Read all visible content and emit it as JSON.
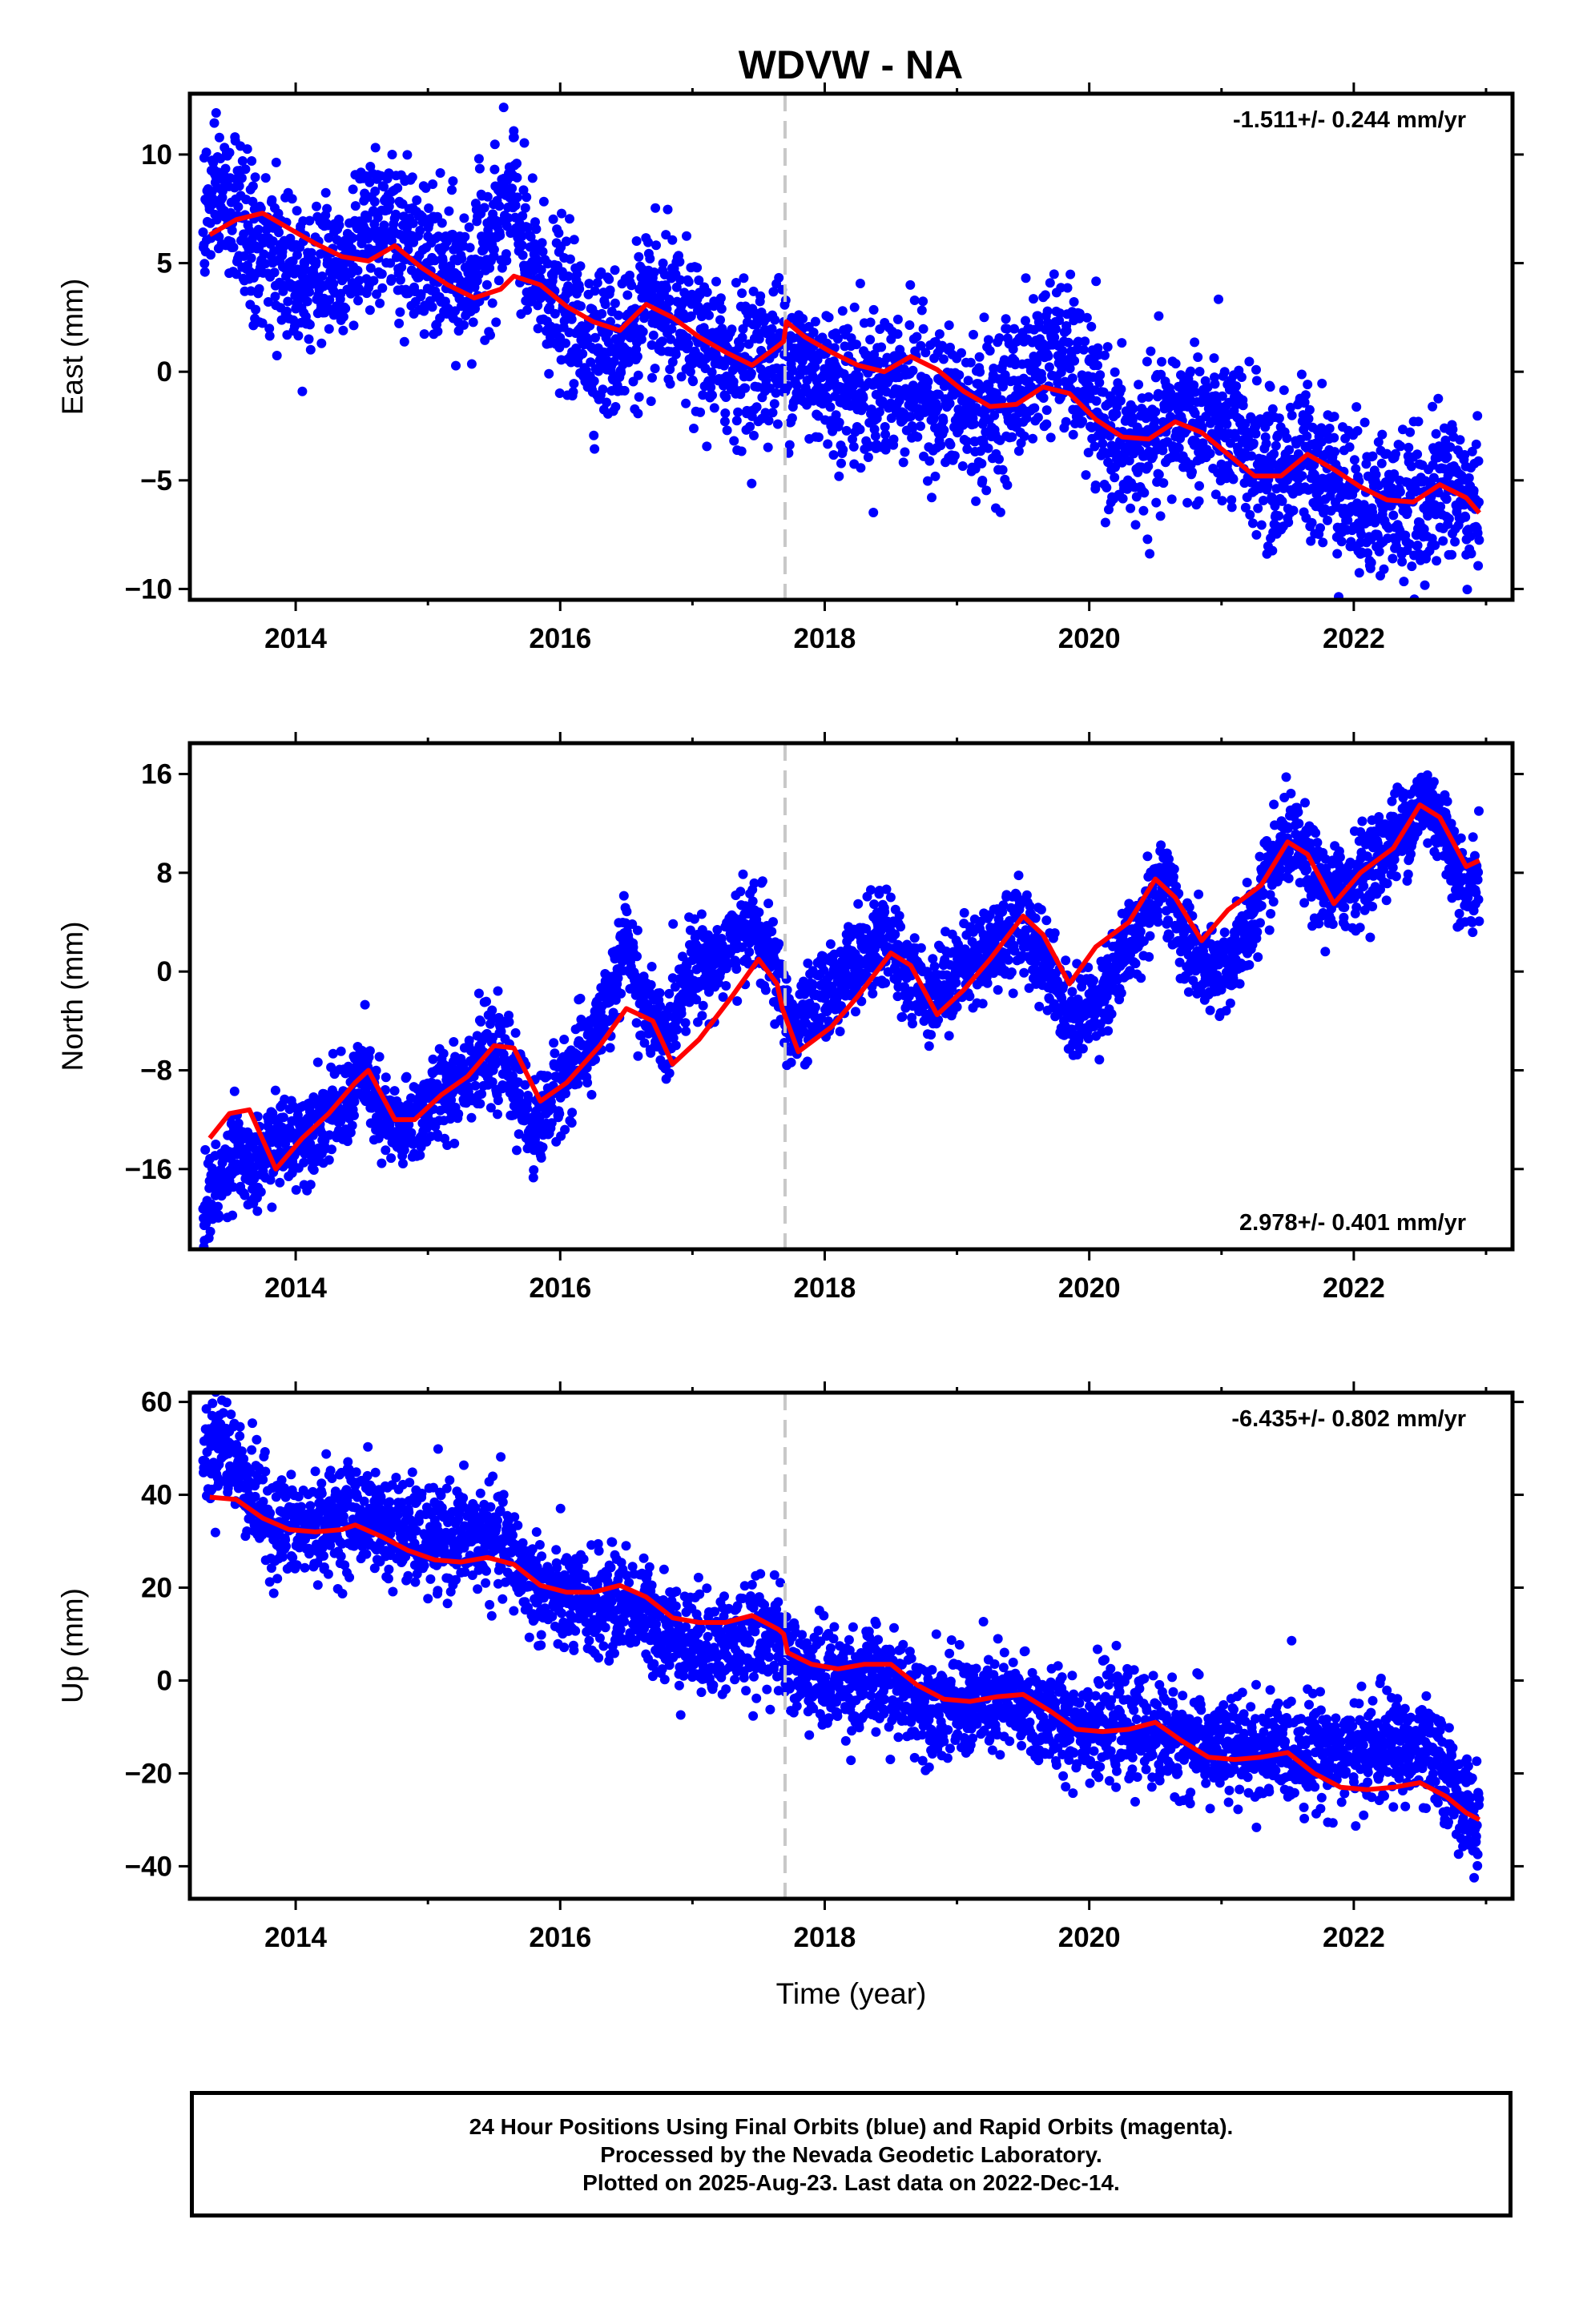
{
  "title": "WDVW - NA",
  "footer": {
    "line1": "24 Hour Positions Using Final Orbits (blue) and Rapid Orbits (magenta).",
    "line2": "Processed by the Nevada Geodetic Laboratory.",
    "line3": "Plotted on 2025-Aug-23. Last data on 2022-Dec-14."
  },
  "colors": {
    "final_orbits": "#0000ff",
    "model_fit": "#ff0000",
    "event_line": "#c8c8c8",
    "frame": "#000000"
  },
  "chart_data": [
    {
      "type": "scatter",
      "component": "east",
      "ylabel": "East (mm)",
      "xlabel": "",
      "xlim": [
        2013.2,
        2023.2
      ],
      "ylim": [
        -10.5,
        12.8
      ],
      "xticks": [
        2014,
        2016,
        2018,
        2020,
        2022
      ],
      "xtick_labels": [
        "2014",
        "2016",
        "2018",
        "2020",
        "2022"
      ],
      "yticks": [
        10,
        5,
        0,
        -5,
        -10
      ],
      "ytick_labels": [
        "10",
        "5",
        "0",
        "−5",
        "−10"
      ],
      "rate_label": "-1.511+/- 0.244 mm/yr",
      "rate_label_position": "top-right",
      "event_line_x": 2017.7,
      "fit_x": [
        2013.35,
        2013.55,
        2013.75,
        2013.95,
        2014.15,
        2014.35,
        2014.55,
        2014.75,
        2014.95,
        2015.15,
        2015.35,
        2015.55,
        2015.65,
        2015.85,
        2016.05,
        2016.25,
        2016.45,
        2016.65,
        2016.85,
        2017.05,
        2017.25,
        2017.45,
        2017.65,
        2017.69,
        2017.71,
        2017.85,
        2018.05,
        2018.25,
        2018.45,
        2018.65,
        2018.85,
        2019.05,
        2019.25,
        2019.45,
        2019.65,
        2019.85,
        2020.05,
        2020.25,
        2020.45,
        2020.65,
        2020.85,
        2021.05,
        2021.25,
        2021.45,
        2021.65,
        2021.85,
        2022.05,
        2022.25,
        2022.45,
        2022.65,
        2022.85,
        2022.95
      ],
      "fit_y": [
        6.3,
        7.0,
        7.3,
        6.6,
        5.9,
        5.3,
        5.1,
        5.8,
        4.8,
        4.0,
        3.4,
        3.8,
        4.4,
        4.0,
        3.0,
        2.3,
        1.9,
        3.1,
        2.5,
        1.6,
        0.9,
        0.3,
        1.2,
        1.4,
        2.3,
        1.6,
        0.9,
        0.3,
        0.0,
        0.7,
        0.1,
        -0.9,
        -1.6,
        -1.5,
        -0.7,
        -1.0,
        -2.2,
        -3.0,
        -3.1,
        -2.3,
        -2.8,
        -3.8,
        -4.8,
        -4.8,
        -3.8,
        -4.5,
        -5.3,
        -5.9,
        -6.0,
        -5.2,
        -5.8,
        -6.5
      ],
      "data_trend": [
        [
          2013.3,
          7.0
        ],
        [
          2013.4,
          8.2
        ],
        [
          2013.55,
          7.3
        ],
        [
          2013.7,
          5.5
        ],
        [
          2013.9,
          5.0
        ],
        [
          2014.1,
          4.5
        ],
        [
          2014.3,
          5.0
        ],
        [
          2014.5,
          5.8
        ],
        [
          2014.7,
          6.8
        ],
        [
          2014.9,
          5.5
        ],
        [
          2015.1,
          4.5
        ],
        [
          2015.3,
          4.2
        ],
        [
          2015.5,
          6.5
        ],
        [
          2015.65,
          8.0
        ],
        [
          2015.75,
          4.8
        ],
        [
          2015.95,
          3.5
        ],
        [
          2016.15,
          2.0
        ],
        [
          2016.4,
          1.0
        ],
        [
          2016.6,
          2.5
        ],
        [
          2016.8,
          2.8
        ],
        [
          2017.0,
          1.5
        ],
        [
          2017.2,
          0.5
        ],
        [
          2017.5,
          0.5
        ],
        [
          2017.7,
          0.8
        ],
        [
          2018.0,
          -0.3
        ],
        [
          2018.3,
          -0.8
        ],
        [
          2018.6,
          -0.5
        ],
        [
          2018.9,
          -1.5
        ],
        [
          2019.2,
          -2.0
        ],
        [
          2019.5,
          -0.5
        ],
        [
          2019.7,
          1.2
        ],
        [
          2019.9,
          0.0
        ],
        [
          2020.1,
          -2.5
        ],
        [
          2020.3,
          -3.8
        ],
        [
          2020.5,
          -3.2
        ],
        [
          2020.7,
          -2.0
        ],
        [
          2020.9,
          -2.5
        ],
        [
          2021.2,
          -3.5
        ],
        [
          2021.4,
          -5.0
        ],
        [
          2021.6,
          -3.8
        ],
        [
          2021.8,
          -4.5
        ],
        [
          2022.0,
          -6.0
        ],
        [
          2022.2,
          -6.0
        ],
        [
          2022.5,
          -6.5
        ],
        [
          2022.7,
          -5.0
        ],
        [
          2022.95,
          -6.5
        ]
      ],
      "data_scatter_mm": 1.7
    },
    {
      "type": "scatter",
      "component": "north",
      "ylabel": "North (mm)",
      "xlabel": "",
      "xlim": [
        2013.2,
        2023.2
      ],
      "ylim": [
        -22.5,
        18.5
      ],
      "xticks": [
        2014,
        2016,
        2018,
        2020,
        2022
      ],
      "xtick_labels": [
        "2014",
        "2016",
        "2018",
        "2020",
        "2022"
      ],
      "yticks": [
        16,
        8,
        0,
        -8,
        -16
      ],
      "ytick_labels": [
        "16",
        "8",
        "0",
        "−8",
        "−16"
      ],
      "rate_label": "2.978+/- 0.401 mm/yr",
      "rate_label_position": "bottom-right",
      "event_line_x": 2017.7,
      "fit_x": [
        2013.35,
        2013.5,
        2013.65,
        2013.85,
        2014.05,
        2014.25,
        2014.45,
        2014.55,
        2014.75,
        2014.9,
        2015.1,
        2015.3,
        2015.5,
        2015.65,
        2015.85,
        2016.05,
        2016.3,
        2016.5,
        2016.7,
        2016.85,
        2017.05,
        2017.3,
        2017.5,
        2017.64,
        2017.68,
        2017.8,
        2018.05,
        2018.25,
        2018.5,
        2018.65,
        2018.85,
        2019.05,
        2019.25,
        2019.5,
        2019.65,
        2019.85,
        2020.05,
        2020.3,
        2020.5,
        2020.65,
        2020.85,
        2021.05,
        2021.3,
        2021.5,
        2021.65,
        2021.85,
        2022.05,
        2022.3,
        2022.5,
        2022.65,
        2022.85,
        2022.95
      ],
      "fit_y": [
        -13.5,
        -11.5,
        -11.2,
        -16.0,
        -13.5,
        -11.5,
        -9.0,
        -8.0,
        -12.0,
        -12.0,
        -10.0,
        -8.5,
        -6.0,
        -6.2,
        -10.5,
        -9.0,
        -6.0,
        -3.0,
        -4.0,
        -7.5,
        -5.5,
        -2.0,
        1.0,
        -1.0,
        -3.0,
        -6.5,
        -4.5,
        -2.0,
        1.5,
        0.5,
        -3.5,
        -1.5,
        1.0,
        4.5,
        3.0,
        -1.0,
        2.0,
        4.0,
        7.5,
        6.0,
        2.5,
        5.0,
        7.0,
        10.5,
        9.5,
        5.5,
        8.0,
        10.0,
        13.5,
        12.5,
        8.5,
        9.0
      ],
      "data_trend": [
        [
          2013.3,
          -19.0
        ],
        [
          2013.45,
          -17.0
        ],
        [
          2013.55,
          -13.0
        ],
        [
          2013.65,
          -17.0
        ],
        [
          2013.8,
          -14.0
        ],
        [
          2014.0,
          -13.5
        ],
        [
          2014.2,
          -12.0
        ],
        [
          2014.4,
          -10.5
        ],
        [
          2014.5,
          -8.0
        ],
        [
          2014.65,
          -12.0
        ],
        [
          2014.8,
          -13.0
        ],
        [
          2015.0,
          -11.0
        ],
        [
          2015.2,
          -9.0
        ],
        [
          2015.4,
          -7.0
        ],
        [
          2015.6,
          -7.5
        ],
        [
          2015.8,
          -13.0
        ],
        [
          2016.0,
          -9.0
        ],
        [
          2016.2,
          -6.5
        ],
        [
          2016.4,
          -2.0
        ],
        [
          2016.5,
          3.0
        ],
        [
          2016.6,
          -2.0
        ],
        [
          2016.8,
          -6.0
        ],
        [
          2016.95,
          0.0
        ],
        [
          2017.2,
          1.0
        ],
        [
          2017.45,
          4.0
        ],
        [
          2017.6,
          1.0
        ],
        [
          2017.75,
          -5.0
        ],
        [
          2017.95,
          -2.5
        ],
        [
          2018.2,
          0.5
        ],
        [
          2018.45,
          3.0
        ],
        [
          2018.6,
          0.0
        ],
        [
          2018.8,
          -2.0
        ],
        [
          2019.0,
          0.0
        ],
        [
          2019.3,
          2.5
        ],
        [
          2019.5,
          3.5
        ],
        [
          2019.7,
          0.5
        ],
        [
          2019.85,
          -4.0
        ],
        [
          2020.0,
          -3.0
        ],
        [
          2020.2,
          0.0
        ],
        [
          2020.4,
          4.0
        ],
        [
          2020.55,
          8.0
        ],
        [
          2020.7,
          3.0
        ],
        [
          2020.9,
          -0.5
        ],
        [
          2021.1,
          1.0
        ],
        [
          2021.3,
          6.0
        ],
        [
          2021.5,
          11.0
        ],
        [
          2021.6,
          9.5
        ],
        [
          2021.8,
          6.0
        ],
        [
          2022.0,
          7.5
        ],
        [
          2022.2,
          9.5
        ],
        [
          2022.4,
          12.0
        ],
        [
          2022.55,
          14.0
        ],
        [
          2022.7,
          11.0
        ],
        [
          2022.85,
          6.0
        ],
        [
          2022.95,
          8.0
        ]
      ],
      "data_scatter_mm": 1.8
    },
    {
      "type": "scatter",
      "component": "up",
      "ylabel": "Up (mm)",
      "xlabel": "Time (year)",
      "xlim": [
        2013.2,
        2023.2
      ],
      "ylim": [
        -47.0,
        62.0
      ],
      "xticks": [
        2014,
        2016,
        2018,
        2020,
        2022
      ],
      "xtick_labels": [
        "2014",
        "2016",
        "2018",
        "2020",
        "2022"
      ],
      "yticks": [
        60,
        40,
        20,
        0,
        -20,
        -40
      ],
      "ytick_labels": [
        "60",
        "40",
        "20",
        "0",
        "−20",
        "−40"
      ],
      "rate_label": "-6.435+/- 0.802 mm/yr",
      "rate_label_position": "top-right",
      "event_line_x": 2017.7,
      "fit_x": [
        2013.35,
        2013.55,
        2013.75,
        2013.95,
        2014.15,
        2014.35,
        2014.45,
        2014.65,
        2014.85,
        2015.05,
        2015.25,
        2015.45,
        2015.65,
        2015.85,
        2016.05,
        2016.25,
        2016.45,
        2016.65,
        2016.85,
        2017.05,
        2017.25,
        2017.45,
        2017.65,
        2017.69,
        2017.72,
        2017.9,
        2018.1,
        2018.3,
        2018.5,
        2018.7,
        2018.9,
        2019.1,
        2019.3,
        2019.5,
        2019.7,
        2019.9,
        2020.1,
        2020.3,
        2020.5,
        2020.7,
        2020.9,
        2021.1,
        2021.3,
        2021.5,
        2021.7,
        2021.9,
        2022.1,
        2022.3,
        2022.5,
        2022.7,
        2022.85,
        2022.95
      ],
      "fit_y": [
        39.5,
        39.0,
        35.0,
        32.5,
        32.0,
        32.5,
        33.5,
        31.0,
        28.0,
        26.0,
        25.5,
        26.5,
        25.0,
        20.5,
        19.0,
        19.0,
        20.5,
        18.0,
        13.5,
        12.5,
        12.5,
        14.0,
        11.0,
        10.0,
        6.0,
        3.5,
        2.5,
        3.5,
        3.5,
        -1.0,
        -4.0,
        -4.5,
        -3.5,
        -3.0,
        -6.5,
        -10.5,
        -11.0,
        -10.5,
        -9.0,
        -13.0,
        -16.5,
        -17.0,
        -16.5,
        -15.5,
        -20.0,
        -23.0,
        -23.5,
        -23.0,
        -22.0,
        -25.0,
        -28.5,
        -30.0
      ],
      "data_trend": [
        [
          2013.3,
          48.0
        ],
        [
          2013.45,
          52.0
        ],
        [
          2013.6,
          44.0
        ],
        [
          2013.8,
          34.0
        ],
        [
          2014.0,
          32.0
        ],
        [
          2014.3,
          35.0
        ],
        [
          2014.5,
          36.0
        ],
        [
          2014.7,
          33.0
        ],
        [
          2015.0,
          30.0
        ],
        [
          2015.3,
          31.0
        ],
        [
          2015.55,
          30.0
        ],
        [
          2015.7,
          24.0
        ],
        [
          2015.9,
          18.0
        ],
        [
          2016.2,
          16.0
        ],
        [
          2016.5,
          17.0
        ],
        [
          2016.7,
          13.0
        ],
        [
          2017.0,
          8.0
        ],
        [
          2017.3,
          8.0
        ],
        [
          2017.6,
          10.0
        ],
        [
          2017.8,
          2.0
        ],
        [
          2018.1,
          0.0
        ],
        [
          2018.4,
          0.0
        ],
        [
          2018.7,
          -4.0
        ],
        [
          2019.0,
          -6.0
        ],
        [
          2019.4,
          -5.0
        ],
        [
          2019.8,
          -9.0
        ],
        [
          2020.2,
          -10.0
        ],
        [
          2020.6,
          -12.0
        ],
        [
          2021.0,
          -15.0
        ],
        [
          2021.4,
          -15.0
        ],
        [
          2021.7,
          -15.0
        ],
        [
          2022.0,
          -16.0
        ],
        [
          2022.3,
          -14.0
        ],
        [
          2022.55,
          -16.0
        ],
        [
          2022.75,
          -22.0
        ],
        [
          2022.95,
          -32.0
        ]
      ],
      "data_scatter_mm": 5.5
    }
  ]
}
